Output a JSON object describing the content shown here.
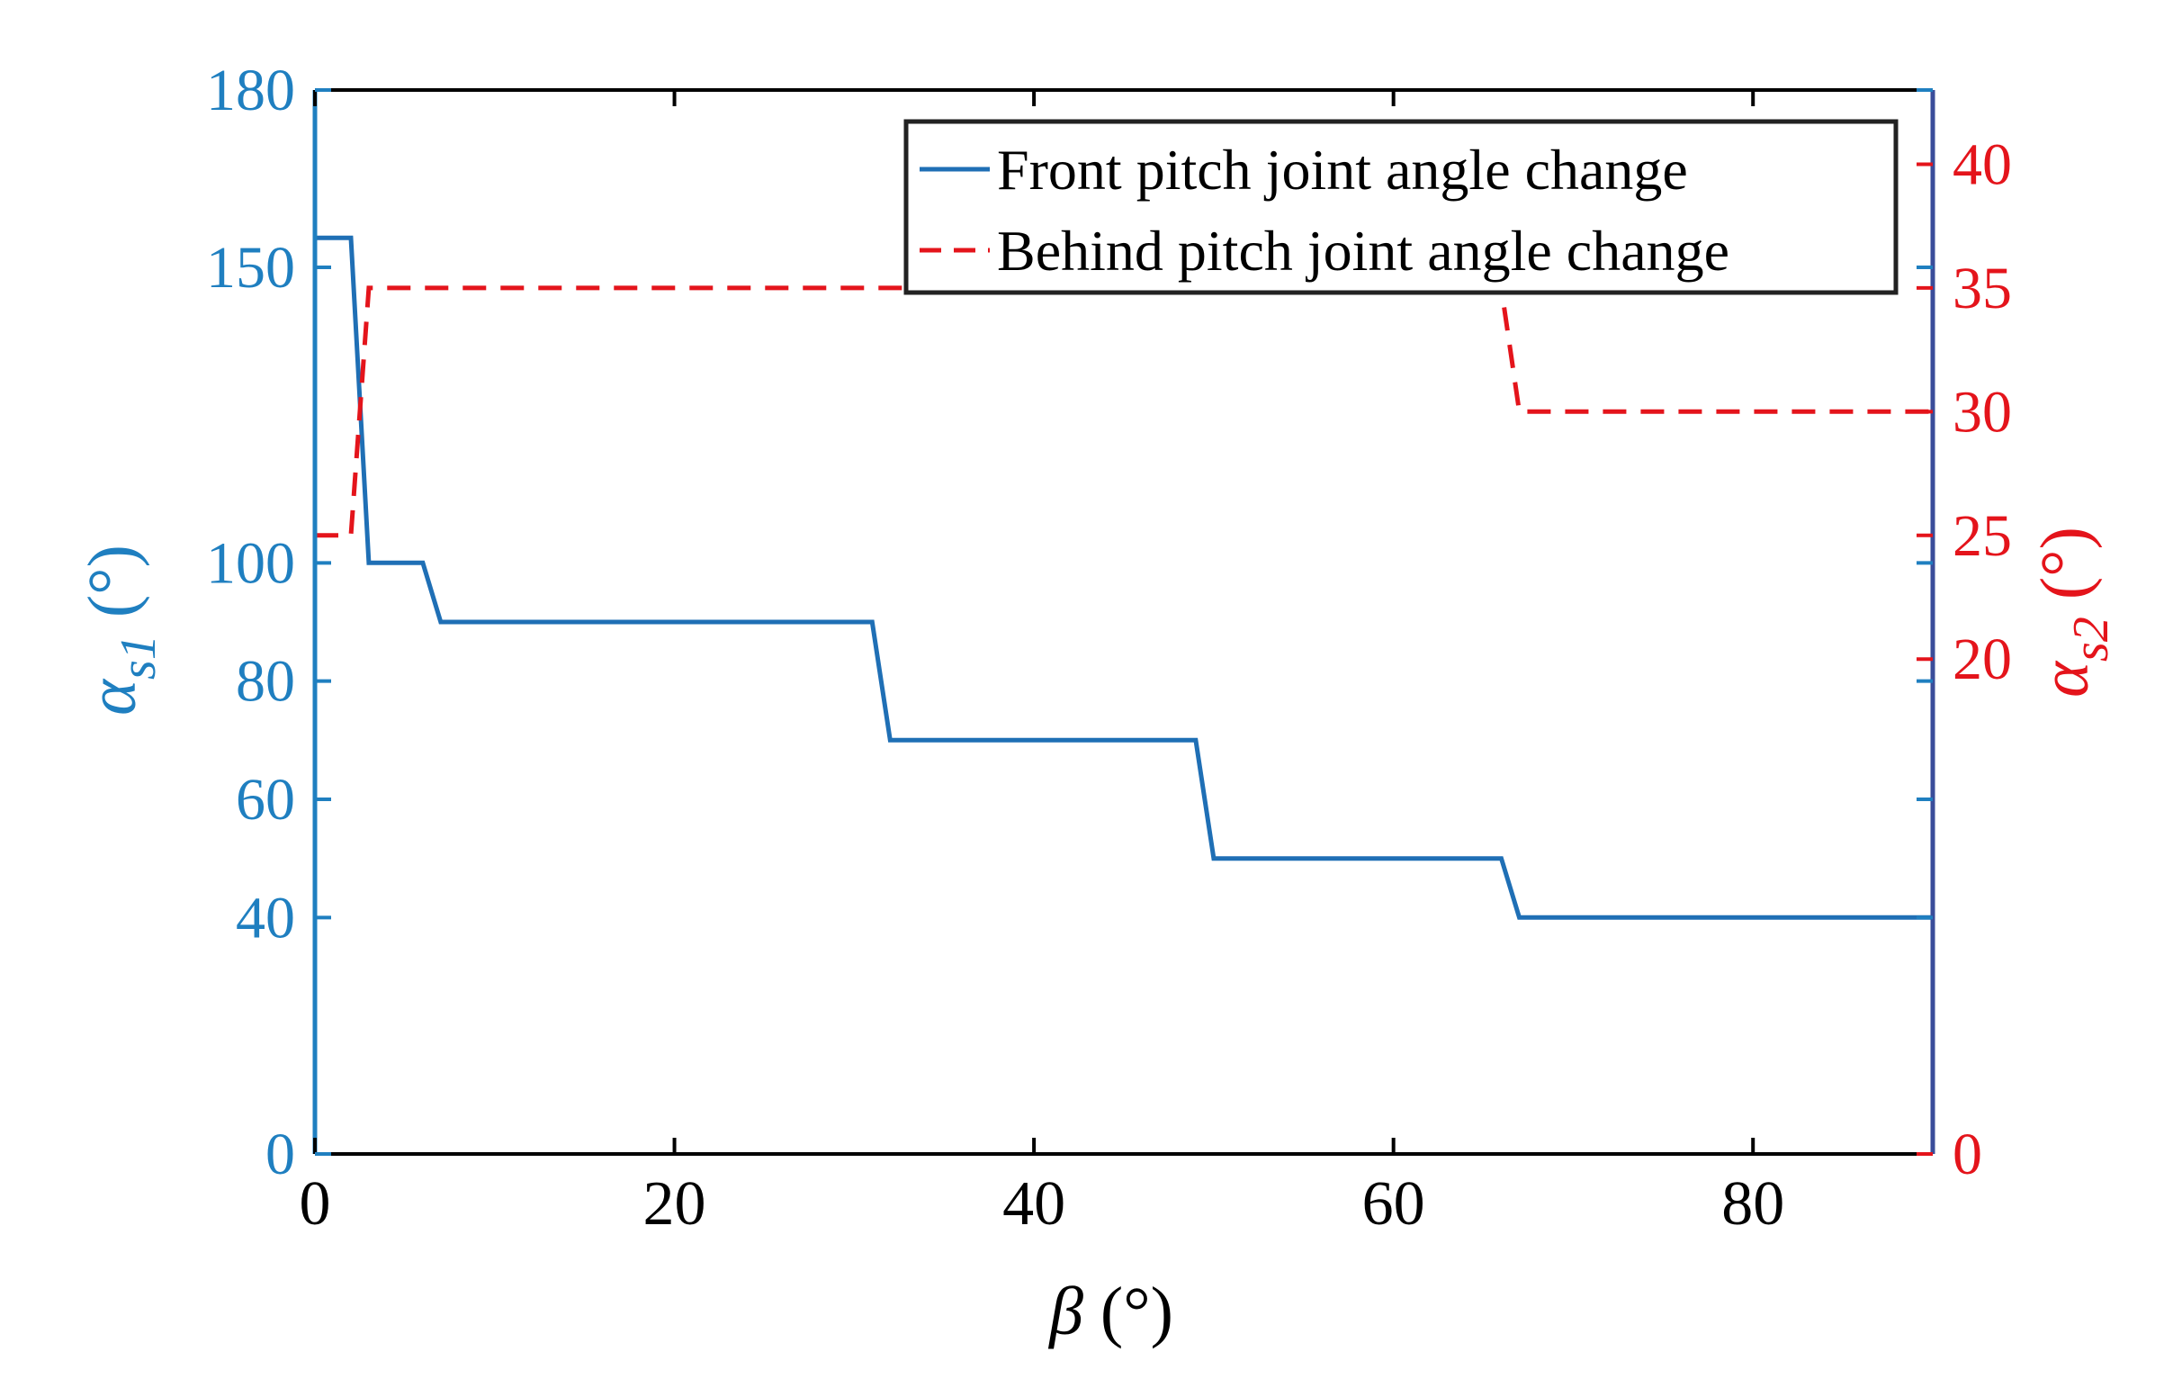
{
  "chart_data": {
    "type": "line",
    "title": "",
    "xlabel": {
      "symbol": "β",
      "unit": "(°)"
    },
    "ylabel_left": {
      "symbol": "α",
      "subscript": "s1",
      "unit": "(°)"
    },
    "ylabel_right": {
      "symbol": "α",
      "subscript": "s2",
      "unit": "(°)"
    },
    "xlim": [
      0,
      90
    ],
    "ylim_left": [
      0,
      180
    ],
    "ylim_right": [
      0,
      43
    ],
    "x_ticks": [
      "0",
      "20",
      "40",
      "60",
      "80"
    ],
    "y_left_ticks": [
      "0",
      "40",
      "60",
      "80",
      "100",
      "150",
      "180"
    ],
    "y_right_ticks": [
      "0",
      "20",
      "25",
      "30",
      "35",
      "40"
    ],
    "grid": false,
    "legend_position": "top-right",
    "legend": [
      "Front pitch joint angle change",
      "Behind pitch joint angle change"
    ],
    "colors": {
      "left_axis": "#1f7fc0",
      "right_axis": "#e4141b",
      "front": "#1f6fb5",
      "behind": "#e4141b",
      "frame": "#000000"
    },
    "series": [
      {
        "name": "Front pitch joint angle change",
        "axis": "left",
        "style": "solid",
        "x": [
          0,
          2,
          3,
          6,
          7,
          31,
          32,
          49,
          50,
          66,
          67,
          90
        ],
        "y": [
          155,
          155,
          100,
          100,
          90,
          90,
          70,
          70,
          50,
          50,
          40,
          40
        ]
      },
      {
        "name": "Behind pitch joint angle change",
        "axis": "right",
        "style": "dashed",
        "x": [
          0,
          2,
          3,
          66,
          67,
          90
        ],
        "y": [
          25,
          25,
          35,
          35,
          30,
          30
        ]
      }
    ]
  }
}
